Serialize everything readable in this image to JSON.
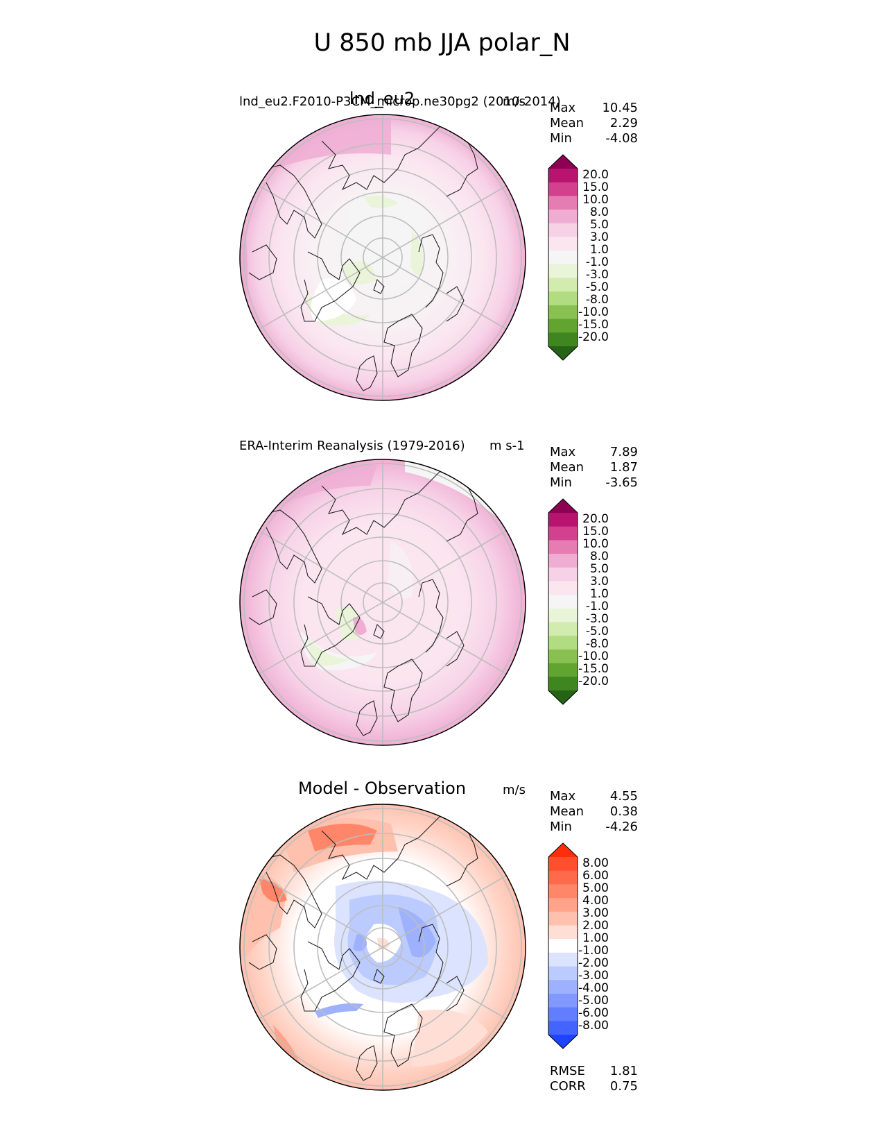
{
  "figure": {
    "suptitle": "U 850 mb JJA polar_N"
  },
  "chart_data": [
    {
      "type": "heatmap",
      "projection": "north-polar-stereographic",
      "title": "lnd_eu2",
      "left_label": "lnd_eu2.F2010-P3CM_microp.ne30pg2 (2010-2014)",
      "units": "m/s",
      "stats": [
        {
          "name": "Max",
          "value": "10.45"
        },
        {
          "name": "Mean",
          "value": "2.29"
        },
        {
          "name": "Min",
          "value": "-4.08"
        }
      ],
      "colorbar": {
        "ticks": [
          "20.0",
          "15.0",
          "10.0",
          "8.0",
          "5.0",
          "3.0",
          "1.0",
          "-1.0",
          "-3.0",
          "-5.0",
          "-8.0",
          "-10.0",
          "-15.0",
          "-20.0"
        ],
        "colors": [
          "#8e0152",
          "#b8146f",
          "#d2408e",
          "#e57db2",
          "#efadd3",
          "#f7d2e7",
          "#fbe6f0",
          "#f5f5f5",
          "#e9f4d9",
          "#d2ebae",
          "#b1dc82",
          "#88c151",
          "#61a42f",
          "#3f8520",
          "#256317"
        ]
      }
    },
    {
      "type": "heatmap",
      "projection": "north-polar-stereographic",
      "title": "",
      "left_label": "ERA-Interim Reanalysis (1979-2016)",
      "units": "m s-1",
      "stats": [
        {
          "name": "Max",
          "value": "7.89"
        },
        {
          "name": "Mean",
          "value": "1.87"
        },
        {
          "name": "Min",
          "value": "-3.65"
        }
      ],
      "colorbar": {
        "ticks": [
          "20.0",
          "15.0",
          "10.0",
          "8.0",
          "5.0",
          "3.0",
          "1.0",
          "-1.0",
          "-3.0",
          "-5.0",
          "-8.0",
          "-10.0",
          "-15.0",
          "-20.0"
        ],
        "colors": [
          "#8e0152",
          "#b8146f",
          "#d2408e",
          "#e57db2",
          "#efadd3",
          "#f7d2e7",
          "#fbe6f0",
          "#f5f5f5",
          "#e9f4d9",
          "#d2ebae",
          "#b1dc82",
          "#88c151",
          "#61a42f",
          "#3f8520",
          "#256317"
        ]
      }
    },
    {
      "type": "heatmap",
      "projection": "north-polar-stereographic",
      "title": "Model - Observation",
      "left_label": "",
      "units": "m/s",
      "stats": [
        {
          "name": "Max",
          "value": "4.55"
        },
        {
          "name": "Mean",
          "value": "0.38"
        },
        {
          "name": "Min",
          "value": "-4.26"
        }
      ],
      "bottom_stats": [
        {
          "name": "RMSE",
          "value": "1.81"
        },
        {
          "name": "CORR",
          "value": "0.75"
        }
      ],
      "colorbar": {
        "ticks": [
          "8.00",
          "6.00",
          "5.00",
          "4.00",
          "3.00",
          "2.00",
          "1.00",
          "-1.00",
          "-2.00",
          "-3.00",
          "-4.00",
          "-5.00",
          "-6.00",
          "-8.00"
        ],
        "colors": [
          "#ff2d0a",
          "#ff4f2e",
          "#ff6a4c",
          "#ff8669",
          "#ffa38b",
          "#ffc0ad",
          "#ffdfd5",
          "#ffffff",
          "#dbe3ff",
          "#bccbff",
          "#9eb1ff",
          "#8098ff",
          "#627eff",
          "#4364ff",
          "#1f44ff"
        ]
      }
    }
  ]
}
